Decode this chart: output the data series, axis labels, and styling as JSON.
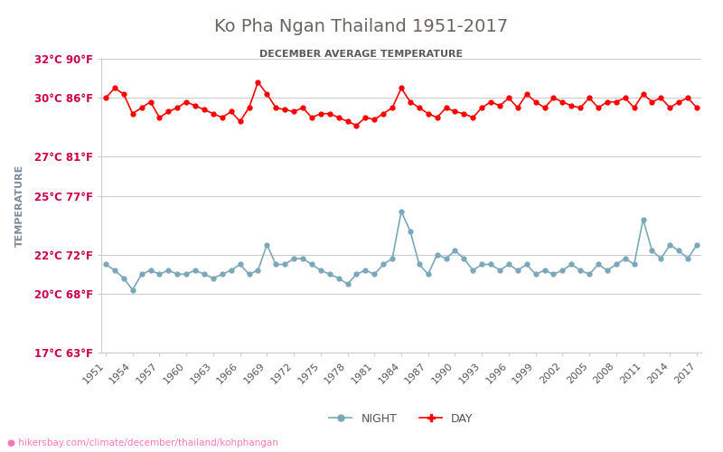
{
  "title": "Ko Pha Ngan Thailand 1951-2017",
  "subtitle": "DECEMBER AVERAGE TEMPERATURE",
  "ylabel": "TEMPERATURE",
  "title_color": "#6b6560",
  "subtitle_color": "#5a5a5a",
  "ylabel_color": "#7a8a9a",
  "axis_label_color": "#cc0044",
  "tick_label_color": "#555555",
  "background_color": "#ffffff",
  "grid_color": "#cccccc",
  "day_color": "#ff0000",
  "night_color": "#7aa8b8",
  "years": [
    1951,
    1952,
    1953,
    1954,
    1955,
    1956,
    1957,
    1958,
    1959,
    1960,
    1961,
    1962,
    1963,
    1964,
    1965,
    1966,
    1967,
    1968,
    1969,
    1970,
    1971,
    1972,
    1973,
    1974,
    1975,
    1976,
    1977,
    1978,
    1979,
    1980,
    1981,
    1982,
    1983,
    1984,
    1985,
    1986,
    1987,
    1988,
    1989,
    1990,
    1991,
    1992,
    1993,
    1994,
    1995,
    1996,
    1997,
    1998,
    1999,
    2000,
    2001,
    2002,
    2003,
    2004,
    2005,
    2006,
    2007,
    2008,
    2009,
    2010,
    2011,
    2012,
    2013,
    2014,
    2015,
    2016,
    2017
  ],
  "day_temps": [
    30.0,
    30.5,
    30.2,
    29.2,
    29.5,
    29.8,
    29.0,
    29.3,
    29.5,
    29.8,
    29.6,
    29.4,
    29.2,
    29.0,
    29.3,
    28.8,
    29.5,
    30.8,
    30.2,
    29.5,
    29.4,
    29.3,
    29.5,
    29.0,
    29.2,
    29.2,
    29.0,
    28.8,
    28.6,
    29.0,
    28.9,
    29.2,
    29.5,
    30.5,
    29.8,
    29.5,
    29.2,
    29.0,
    29.5,
    29.3,
    29.2,
    29.0,
    29.5,
    29.8,
    29.6,
    30.0,
    29.5,
    30.2,
    29.8,
    29.5,
    30.0,
    29.8,
    29.6,
    29.5,
    30.0,
    29.5,
    29.8,
    29.8,
    30.0,
    29.5,
    30.2,
    29.8,
    30.0,
    29.5,
    29.8,
    30.0,
    29.5
  ],
  "night_temps": [
    21.5,
    21.2,
    20.8,
    20.2,
    21.0,
    21.2,
    21.0,
    21.2,
    21.0,
    21.0,
    21.2,
    21.0,
    20.8,
    21.0,
    21.2,
    21.5,
    21.0,
    21.2,
    22.5,
    21.5,
    21.5,
    21.8,
    21.8,
    21.5,
    21.2,
    21.0,
    20.8,
    20.5,
    21.0,
    21.2,
    21.0,
    21.5,
    21.8,
    24.2,
    23.2,
    21.5,
    21.0,
    22.0,
    21.8,
    22.2,
    21.8,
    21.2,
    21.5,
    21.5,
    21.2,
    21.5,
    21.2,
    21.5,
    21.0,
    21.2,
    21.0,
    21.2,
    21.5,
    21.2,
    21.0,
    21.5,
    21.2,
    21.5,
    21.8,
    21.5,
    23.8,
    22.2,
    21.8,
    22.5,
    22.2,
    21.8,
    22.5
  ],
  "yticks_c": [
    17,
    20,
    22,
    25,
    27,
    30,
    32
  ],
  "yticks_f": [
    63,
    68,
    72,
    77,
    81,
    86,
    90
  ],
  "xticks": [
    1951,
    1954,
    1957,
    1960,
    1963,
    1966,
    1969,
    1972,
    1975,
    1978,
    1981,
    1984,
    1987,
    1990,
    1993,
    1996,
    1999,
    2002,
    2005,
    2008,
    2011,
    2014,
    2017
  ],
  "ylim": [
    17,
    32
  ],
  "xlim": [
    1951,
    2017
  ],
  "watermark": "hikersbay.com/climate/december/thailand/kohphangan",
  "watermark_color": "#ff69b4",
  "legend_night_label": "NIGHT",
  "legend_day_label": "DAY"
}
